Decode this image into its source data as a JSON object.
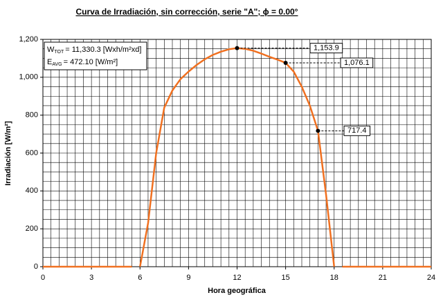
{
  "chart_data": {
    "type": "line",
    "title": "Curva de Irradiación, sin corrección, serie \"A\"; ϕ = 0.00°",
    "x_label": "Hora geográfica",
    "y_label": "Irradiación [W/m²]",
    "x": [
      0,
      5.5,
      5.75,
      6,
      6.5,
      7,
      7.5,
      8,
      8.5,
      9,
      9.5,
      10,
      10.5,
      11,
      11.5,
      12,
      12.5,
      13,
      13.5,
      14,
      14.5,
      15,
      15.5,
      16,
      16.5,
      17,
      17.5,
      18,
      18.25,
      18.5,
      24
    ],
    "series": [
      {
        "name": "Irradiación",
        "color": "#f07020",
        "values": [
          0,
          0,
          null,
          0,
          230,
          600,
          840,
          930,
          990,
          1030,
          1065,
          1095,
          1118,
          1135,
          1148,
          1153.9,
          1150,
          1140,
          1125,
          1108,
          1093,
          1076.1,
          1030,
          950,
          850,
          717.4,
          380,
          0,
          null,
          0,
          0
        ]
      }
    ],
    "xlim": [
      0,
      24
    ],
    "ylim": [
      0,
      1200
    ],
    "xticks": [
      0,
      3,
      6,
      9,
      12,
      15,
      18,
      21,
      24
    ],
    "yticks": [
      0,
      200,
      400,
      600,
      800,
      {
        "value": 1000,
        "label": "1,000"
      },
      {
        "value": 1200,
        "label": "1,200"
      }
    ],
    "grid": true,
    "minor_grid_step": {
      "x": 0.5,
      "y": 50
    },
    "annotations": [
      {
        "x": 12,
        "y": 1153.9,
        "label": "1,153.9"
      },
      {
        "x": 15,
        "y": 1076.1,
        "label": "1,076.1"
      },
      {
        "x": 17,
        "y": 717.4,
        "label": "717.4"
      }
    ],
    "info_box": [
      {
        "symbol": "W",
        "sub": "TOT",
        "text": "= 11,330.3 [Wxh/m²xd]"
      },
      {
        "symbol": "E",
        "sub": "AVG",
        "text": "= 472.10 [W/m²]"
      }
    ]
  }
}
